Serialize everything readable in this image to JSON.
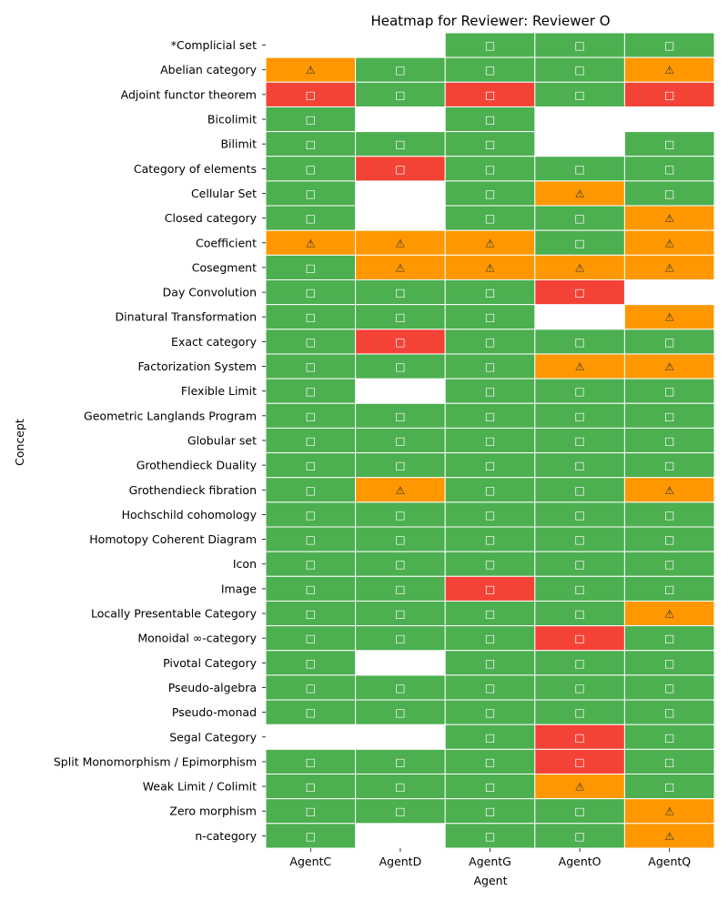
{
  "chart_data": {
    "type": "heatmap",
    "title": "Heatmap for Reviewer: Reviewer O",
    "xlabel": "Agent",
    "ylabel": "Concept",
    "grid": false,
    "legend": "none",
    "columns": [
      "AgentC",
      "AgentD",
      "AgentG",
      "AgentO",
      "AgentQ"
    ],
    "rows": [
      {
        "concept": "*Complicial set",
        "values": [
          "",
          "",
          "pass",
          "pass",
          "pass"
        ]
      },
      {
        "concept": "Abelian category",
        "values": [
          "warn",
          "pass",
          "pass",
          "pass",
          "warn"
        ]
      },
      {
        "concept": "Adjoint functor theorem",
        "values": [
          "fail",
          "pass",
          "fail",
          "pass",
          "fail"
        ]
      },
      {
        "concept": "Bicolimit",
        "values": [
          "pass",
          "",
          "pass",
          "",
          ""
        ]
      },
      {
        "concept": "Bilimit",
        "values": [
          "pass",
          "pass",
          "pass",
          "",
          "pass"
        ]
      },
      {
        "concept": "Category of elements",
        "values": [
          "pass",
          "fail",
          "pass",
          "pass",
          "pass"
        ]
      },
      {
        "concept": "Cellular Set",
        "values": [
          "pass",
          "",
          "pass",
          "warn",
          "pass"
        ]
      },
      {
        "concept": "Closed category",
        "values": [
          "pass",
          "",
          "pass",
          "pass",
          "warn"
        ]
      },
      {
        "concept": "Coefficient",
        "values": [
          "warn",
          "warn",
          "warn",
          "pass",
          "warn"
        ]
      },
      {
        "concept": "Cosegment",
        "values": [
          "pass",
          "warn",
          "warn",
          "warn",
          "warn"
        ]
      },
      {
        "concept": "Day Convolution",
        "values": [
          "pass",
          "pass",
          "pass",
          "fail",
          ""
        ]
      },
      {
        "concept": "Dinatural Transformation",
        "values": [
          "pass",
          "pass",
          "pass",
          "",
          "warn"
        ]
      },
      {
        "concept": "Exact category",
        "values": [
          "pass",
          "fail",
          "pass",
          "pass",
          "pass"
        ]
      },
      {
        "concept": "Factorization System",
        "values": [
          "pass",
          "pass",
          "pass",
          "warn",
          "warn"
        ]
      },
      {
        "concept": "Flexible Limit",
        "values": [
          "pass",
          "",
          "pass",
          "pass",
          "pass"
        ]
      },
      {
        "concept": "Geometric Langlands Program",
        "values": [
          "pass",
          "pass",
          "pass",
          "pass",
          "pass"
        ]
      },
      {
        "concept": "Globular set",
        "values": [
          "pass",
          "pass",
          "pass",
          "pass",
          "pass"
        ]
      },
      {
        "concept": "Grothendieck Duality",
        "values": [
          "pass",
          "pass",
          "pass",
          "pass",
          "pass"
        ]
      },
      {
        "concept": "Grothendieck fibration",
        "values": [
          "pass",
          "warn",
          "pass",
          "pass",
          "warn"
        ]
      },
      {
        "concept": "Hochschild cohomology",
        "values": [
          "pass",
          "pass",
          "pass",
          "pass",
          "pass"
        ]
      },
      {
        "concept": "Homotopy Coherent Diagram",
        "values": [
          "pass",
          "pass",
          "pass",
          "pass",
          "pass"
        ]
      },
      {
        "concept": "Icon",
        "values": [
          "pass",
          "pass",
          "pass",
          "pass",
          "pass"
        ]
      },
      {
        "concept": "Image",
        "values": [
          "pass",
          "pass",
          "fail",
          "pass",
          "pass"
        ]
      },
      {
        "concept": "Locally Presentable Category",
        "values": [
          "pass",
          "pass",
          "pass",
          "pass",
          "warn"
        ]
      },
      {
        "concept": "Monoidal ∞-category",
        "values": [
          "pass",
          "pass",
          "pass",
          "fail",
          "pass"
        ]
      },
      {
        "concept": "Pivotal Category",
        "values": [
          "pass",
          "",
          "pass",
          "pass",
          "pass"
        ]
      },
      {
        "concept": "Pseudo-algebra",
        "values": [
          "pass",
          "pass",
          "pass",
          "pass",
          "pass"
        ]
      },
      {
        "concept": "Pseudo-monad",
        "values": [
          "pass",
          "pass",
          "pass",
          "pass",
          "pass"
        ]
      },
      {
        "concept": "Segal Category",
        "values": [
          "",
          "",
          "pass",
          "fail",
          "pass"
        ]
      },
      {
        "concept": "Split Monomorphism / Epimorphism",
        "values": [
          "pass",
          "pass",
          "pass",
          "fail",
          "pass"
        ]
      },
      {
        "concept": "Weak Limit / Colimit",
        "values": [
          "pass",
          "pass",
          "pass",
          "warn",
          "pass"
        ]
      },
      {
        "concept": "Zero morphism",
        "values": [
          "pass",
          "pass",
          "pass",
          "pass",
          "warn"
        ]
      },
      {
        "concept": "n-category",
        "values": [
          "pass",
          "",
          "pass",
          "pass",
          "warn"
        ]
      }
    ],
    "status_styles": {
      "pass": {
        "color": "#4caf50",
        "glyph": "□",
        "glyph_color": "#ffffff"
      },
      "warn": {
        "color": "#ff9800",
        "glyph": "⚠",
        "glyph_color": "#333333"
      },
      "fail": {
        "color": "#f44336",
        "glyph": "□",
        "glyph_color": "#ffffff"
      }
    }
  }
}
